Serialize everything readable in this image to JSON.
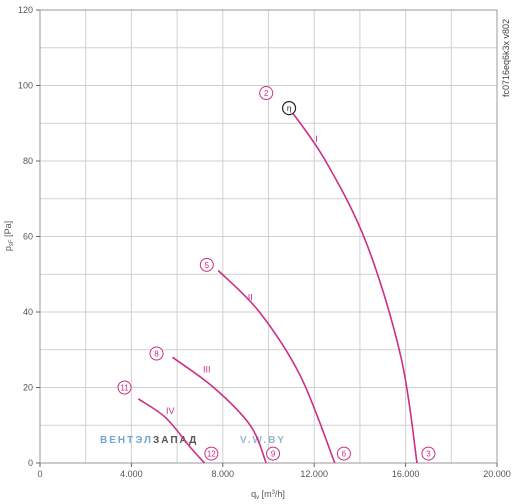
{
  "chart_data": {
    "type": "line",
    "xlabel_main": "q",
    "xlabel_sub": "v",
    "xlabel_unit_pre": " [m",
    "xlabel_unit_sup": "3",
    "xlabel_unit_post": "/h]",
    "ylabel_main": "p",
    "ylabel_sub": "sF",
    "ylabel_unit": " [Pa]",
    "side_code": "fc0716eq6k3x v802",
    "xlim": [
      0,
      20000
    ],
    "ylim": [
      0,
      120
    ],
    "x_ticks": [
      0,
      4000,
      8000,
      12000,
      16000,
      20000
    ],
    "x_tick_labels": [
      "0",
      "4.000",
      "8.000",
      "12.000",
      "16.000",
      "20.000"
    ],
    "y_ticks": [
      0,
      20,
      40,
      60,
      80,
      100,
      120
    ],
    "y_tick_labels": [
      "0",
      "20",
      "40",
      "60",
      "80",
      "100",
      "120"
    ],
    "grid": true,
    "curve_color": "#cc2f86",
    "series": [
      {
        "name": "I",
        "points": [
          [
            10900,
            94
          ],
          [
            12500,
            80
          ],
          [
            14300,
            58
          ],
          [
            15800,
            28
          ],
          [
            16500,
            0
          ]
        ],
        "label_at": [
          12100,
          85
        ],
        "start_marker": "2",
        "end_marker": "3",
        "start_marker_at": [
          9900,
          98
        ],
        "end_marker_at": [
          17000,
          2.5
        ]
      },
      {
        "name": "II",
        "points": [
          [
            7800,
            51
          ],
          [
            9600,
            40
          ],
          [
            11400,
            23
          ],
          [
            12900,
            0
          ]
        ],
        "label_at": [
          9200,
          43
        ],
        "start_marker": "5",
        "end_marker": "6",
        "start_marker_at": [
          7300,
          52.5
        ],
        "end_marker_at": [
          13300,
          2.5
        ]
      },
      {
        "name": "III",
        "points": [
          [
            5800,
            28
          ],
          [
            7600,
            20
          ],
          [
            9200,
            10
          ],
          [
            9900,
            0
          ]
        ],
        "label_at": [
          7300,
          24
        ],
        "start_marker": "8",
        "end_marker": "9",
        "start_marker_at": [
          5100,
          29
        ],
        "end_marker_at": [
          10200,
          2.5
        ]
      },
      {
        "name": "IV",
        "points": [
          [
            4300,
            17
          ],
          [
            5500,
            12
          ],
          [
            6600,
            4
          ],
          [
            7200,
            0
          ]
        ],
        "label_at": [
          5700,
          13
        ],
        "start_marker": "11",
        "end_marker": "12",
        "start_marker_at": [
          3700,
          20
        ],
        "end_marker_at": [
          7500,
          2.5
        ]
      }
    ],
    "efficiency_marker": {
      "symbol": "η",
      "at": [
        10900,
        94
      ]
    }
  },
  "watermark": {
    "part1": "ВЕНТЭЛ",
    "part2": "ЗАПАД",
    "part3": "V.W.BY",
    "part1_color": "#6fa8d6",
    "part2_color": "#555555",
    "part3_color": "#9ab8cf"
  }
}
